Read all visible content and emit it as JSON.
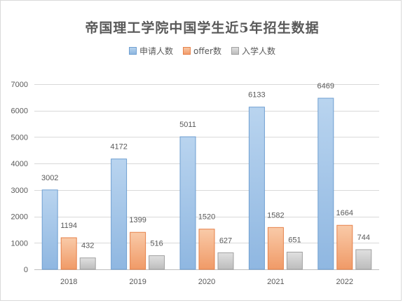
{
  "chart_data": {
    "type": "bar",
    "title": "帝国理工学院中国学生近5年招生数据",
    "xlabel": "",
    "ylabel": "",
    "categories": [
      "2018",
      "2019",
      "2020",
      "2021",
      "2022"
    ],
    "ylim": [
      0,
      7000
    ],
    "yticks": [
      "0",
      "1000",
      "2000",
      "3000",
      "4000",
      "5000",
      "6000",
      "7000"
    ],
    "grid": true,
    "legend_position": "top",
    "series": [
      {
        "name": "申请人数",
        "values": [
          3002,
          4172,
          5011,
          6133,
          6469
        ],
        "color": "#9dc3e6"
      },
      {
        "name": "offer数",
        "values": [
          1194,
          1399,
          1520,
          1582,
          1664
        ],
        "color": "#f4b183"
      },
      {
        "name": "入学人数",
        "values": [
          432,
          516,
          627,
          651,
          744
        ],
        "color": "#c9c9c9"
      }
    ]
  }
}
